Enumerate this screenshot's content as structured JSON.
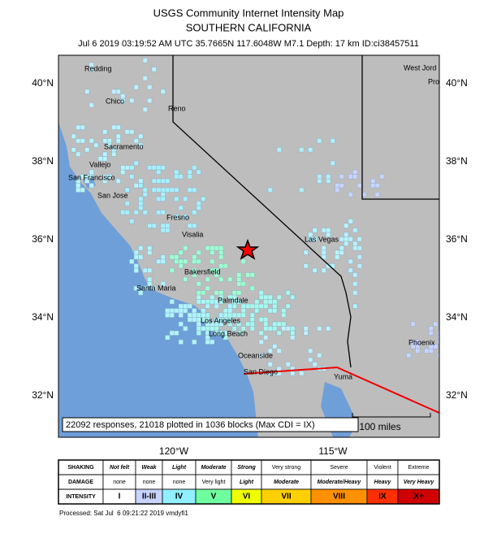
{
  "header": {
    "title": "USGS Community Internet Intensity Map",
    "subtitle": "SOUTHERN CALIFORNIA",
    "info": "Jul 6 2019 03:19:52 AM UTC 35.7665N 117.6048W M7.1 Depth: 17 km ID:ci38457511"
  },
  "map": {
    "lat_labels": [
      "40°N",
      "38°N",
      "36°N",
      "34°N",
      "32°N"
    ],
    "lon_labels": [
      "120°W",
      "115°W"
    ],
    "cities": [
      "Redding",
      "Chico",
      "Reno",
      "Sacramento",
      "Vallejo",
      "San Francisco",
      "San Jose",
      "Fresno",
      "Visalia",
      "Las Vegas",
      "Bakersfield",
      "Santa Maria",
      "Palmdale",
      "Los Angeles",
      "Long Beach",
      "Oceanside",
      "San Diego",
      "Yuma",
      "Phoenix",
      "West Jord",
      "Pro"
    ],
    "responses": "22092 responses, 21018 plotted in 1036 blocks (Max CDI = IX)",
    "scale": "100 miles"
  },
  "legend": {
    "rows": [
      {
        "label": "SHAKING",
        "cells": [
          "Not felt",
          "Weak",
          "Light",
          "Moderate",
          "Strong",
          "Very strong",
          "Severe",
          "Violent",
          "Extreme"
        ]
      },
      {
        "label": "DAMAGE",
        "cells": [
          "none",
          "none",
          "none",
          "Very light",
          "Light",
          "Moderate",
          "Moderate/Heavy",
          "Heavy",
          "Very Heavy"
        ]
      },
      {
        "label": "INTENSITY",
        "cells": [
          "I",
          "II-III",
          "IV",
          "V",
          "VI",
          "VII",
          "VIII",
          "IX",
          "X+"
        ]
      }
    ],
    "colors": [
      "#ffffff",
      "#c8d4ff",
      "#90f0ff",
      "#70ffa0",
      "#f0ff00",
      "#ffd000",
      "#ff9000",
      "#ff3000",
      "#d00000"
    ]
  },
  "footer": "Processed: Sat Jul  6 09:21:22 2019 vmdyfi1"
}
